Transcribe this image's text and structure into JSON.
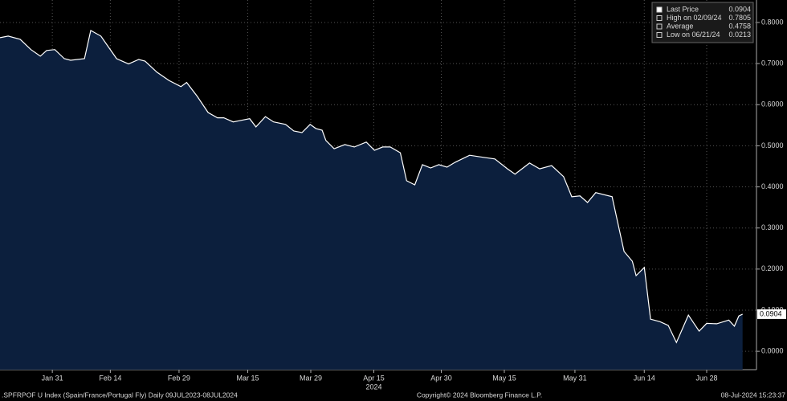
{
  "chart_data": {
    "type": "area",
    "x": [
      0,
      1.3,
      3.2,
      4.9,
      6.4,
      7.4,
      8.7,
      10.2,
      11.2,
      13.4,
      14.4,
      16,
      18.5,
      20.4,
      22,
      23,
      24.9,
      26.8,
      28.7,
      29.6,
      31.3,
      33,
      34.5,
      35.5,
      37,
      38.3,
      39.6,
      40.6,
      42.1,
      43.4,
      45.3,
      46.6,
      47.9,
      49.2,
      50.1,
      51.1,
      51.7,
      53,
      54.7,
      56.2,
      58.1,
      59.4,
      60.7,
      61.9,
      63.5,
      64.5,
      65.8,
      67,
      68.3,
      69.6,
      70.9,
      72.2,
      74.5,
      76.6,
      78.5,
      80.5,
      81.7,
      84,
      85.6,
      87.5,
      89.4,
      90.7,
      92,
      93.2,
      94.5,
      97.1,
      99,
      100.3,
      100.9,
      102.2,
      103.2,
      104.7,
      106,
      107.3,
      109.2,
      110.9,
      112.1,
      113.7,
      115.6,
      116.5,
      117.2,
      117.8
    ],
    "values": [
      0.763,
      0.767,
      0.759,
      0.734,
      0.718,
      0.732,
      0.734,
      0.712,
      0.708,
      0.712,
      0.7805,
      0.767,
      0.712,
      0.699,
      0.71,
      0.706,
      0.679,
      0.659,
      0.644,
      0.654,
      0.62,
      0.581,
      0.568,
      0.568,
      0.558,
      0.562,
      0.566,
      0.546,
      0.571,
      0.558,
      0.552,
      0.536,
      0.532,
      0.552,
      0.542,
      0.538,
      0.513,
      0.493,
      0.503,
      0.497,
      0.509,
      0.489,
      0.497,
      0.497,
      0.483,
      0.415,
      0.405,
      0.454,
      0.446,
      0.454,
      0.448,
      0.46,
      0.477,
      0.472,
      0.468,
      0.444,
      0.431,
      0.458,
      0.444,
      0.452,
      0.425,
      0.376,
      0.378,
      0.362,
      0.386,
      0.376,
      0.243,
      0.219,
      0.184,
      0.204,
      0.078,
      0.072,
      0.063,
      0.0213,
      0.088,
      0.049,
      0.068,
      0.067,
      0.076,
      0.061,
      0.086,
      0.0904
    ],
    "color": "#0c1f3d",
    "line_color": "#ffffff",
    "xlim": [
      0,
      120
    ],
    "xticks": [
      {
        "value": 8.3,
        "label": "Jan 31"
      },
      {
        "value": 17.5,
        "label": "Feb 14"
      },
      {
        "value": 28.4,
        "label": "Feb 29"
      },
      {
        "value": 39.3,
        "label": "Mar 15"
      },
      {
        "value": 49.3,
        "label": "Mar 29"
      },
      {
        "value": 59.3,
        "label": "Apr 15"
      },
      {
        "value": 70,
        "label": "Apr 30"
      },
      {
        "value": 80,
        "label": "May 15"
      },
      {
        "value": 91.2,
        "label": "May 31"
      },
      {
        "value": 102.2,
        "label": "Jun 14"
      },
      {
        "value": 112.1,
        "label": "Jun 28"
      }
    ],
    "year_label": "2024",
    "ylim": [
      -0.0447,
      0.8547
    ],
    "yticks": [
      {
        "value": 0,
        "label": "0.0000"
      },
      {
        "value": 0.1,
        "label": "0.1000"
      },
      {
        "value": 0.2,
        "label": "0.2000"
      },
      {
        "value": 0.3,
        "label": "0.3000"
      },
      {
        "value": 0.4,
        "label": "0.4000"
      },
      {
        "value": 0.5,
        "label": "0.5000"
      },
      {
        "value": 0.6,
        "label": "0.6000"
      },
      {
        "value": 0.7,
        "label": "0.7000"
      },
      {
        "value": 0.8,
        "label": "0.8000"
      }
    ],
    "grid": true,
    "stats": [
      {
        "label": "Last Price",
        "value": 0.0904
      },
      {
        "label": "High on 02/09/24",
        "value": 0.7805
      },
      {
        "label": "Average",
        "value": 0.4758
      },
      {
        "label": "Low on 06/21/24",
        "value": 0.0213
      }
    ],
    "footer": {
      "left": ".SPFRPOF U Index (Spain/France/Portugal Fly)  Daily 09JUL2023-08JUL2024",
      "center": "Copyright© 2024 Bloomberg Finance L.P.",
      "right": "08-Jul-2024 15:23:37"
    }
  }
}
